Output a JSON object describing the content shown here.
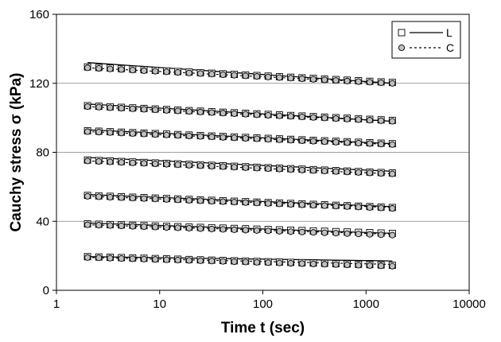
{
  "chart_data": {
    "type": "scatter",
    "xlabel": "Time t (sec)",
    "ylabel": "Cauchy stress σ (kPa)",
    "xscale": "log",
    "xlim": [
      1,
      10000
    ],
    "ylim": [
      0,
      160
    ],
    "x_ticks": [
      1,
      10,
      100,
      1000,
      10000
    ],
    "x_tick_labels": [
      "1",
      "10",
      "100",
      "1000",
      "10000"
    ],
    "y_ticks": [
      0,
      40,
      80,
      120,
      160
    ],
    "y_tick_labels": [
      "0",
      "40",
      "80",
      "120",
      "160"
    ],
    "gridlines_y": [
      40,
      80,
      120
    ],
    "legend_position": "top-right",
    "legend": [
      {
        "name": "L",
        "marker": "open-square",
        "line": "solid"
      },
      {
        "name": "C",
        "marker": "gray-circle",
        "line": "dashed"
      }
    ],
    "colors": {
      "line": "#000000",
      "marker_fill": "#c0c0c0",
      "grid": "#808080"
    },
    "t_range": [
      2,
      1800
    ],
    "series": [
      {
        "level": 1,
        "L": {
          "start": 129.5,
          "end": 120.5,
          "fit_start": 132,
          "fit_end": 120
        },
        "C": {
          "start": 129,
          "end": 120,
          "fit_start": 129,
          "fit_end": 120
        }
      },
      {
        "level": 2,
        "L": {
          "start": 107,
          "end": 98.5,
          "fit_start": 108,
          "fit_end": 98
        },
        "C": {
          "start": 106.5,
          "end": 98,
          "fit_start": 106.5,
          "fit_end": 98
        }
      },
      {
        "level": 3,
        "L": {
          "start": 92.5,
          "end": 85,
          "fit_start": 93,
          "fit_end": 85
        },
        "C": {
          "start": 92,
          "end": 84.5,
          "fit_start": 92,
          "fit_end": 84.5
        }
      },
      {
        "level": 4,
        "L": {
          "start": 75.5,
          "end": 68,
          "fit_start": 77,
          "fit_end": 69
        },
        "C": {
          "start": 75,
          "end": 67.5,
          "fit_start": 75,
          "fit_end": 67.5
        }
      },
      {
        "level": 5,
        "L": {
          "start": 55,
          "end": 48,
          "fit_start": 55.5,
          "fit_end": 48.5
        },
        "C": {
          "start": 54.5,
          "end": 47.5,
          "fit_start": 54.5,
          "fit_end": 48
        }
      },
      {
        "level": 6,
        "L": {
          "start": 38.5,
          "end": 33,
          "fit_start": 39,
          "fit_end": 33
        },
        "C": {
          "start": 38,
          "end": 32,
          "fit_start": 38,
          "fit_end": 32.5
        }
      },
      {
        "level": 7,
        "L": {
          "start": 19.5,
          "end": 14.5,
          "fit_start": 19.5,
          "fit_end": 17
        },
        "C": {
          "start": 19,
          "end": 14,
          "fit_start": 19,
          "fit_end": 15
        }
      }
    ]
  }
}
